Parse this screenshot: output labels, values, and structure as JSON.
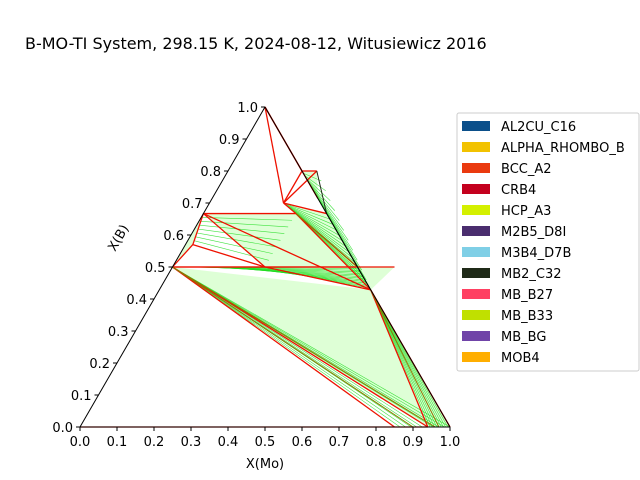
{
  "chart_data": {
    "type": "ternary-phase-diagram",
    "title": "B-MO-TI System, 298.15 K, 2024-08-12, Witusiewicz 2016",
    "xlabel": "X(Mo)",
    "ylabel": "X(B)",
    "x_ticks": [
      "0.0",
      "0.1",
      "0.2",
      "0.3",
      "0.4",
      "0.5",
      "0.6",
      "0.7",
      "0.8",
      "0.9",
      "1.0"
    ],
    "y_ticks": [
      "0.0",
      "0.1",
      "0.2",
      "0.3",
      "0.4",
      "0.5",
      "0.6",
      "0.7",
      "0.8",
      "0.9",
      "1.0"
    ],
    "xlim": [
      0,
      1
    ],
    "ylim": [
      0,
      1
    ],
    "grid": false,
    "legend_position": "right",
    "legend": [
      {
        "name": "AL2CU_C16",
        "color": "#0b4f8a"
      },
      {
        "name": "ALPHA_RHOMBO_B",
        "color": "#f2c200"
      },
      {
        "name": "BCC_A2",
        "color": "#ea3a0f"
      },
      {
        "name": "CRB4",
        "color": "#c4001e"
      },
      {
        "name": "HCP_A3",
        "color": "#d4f000"
      },
      {
        "name": "M2B5_D8I",
        "color": "#4a2d6e"
      },
      {
        "name": "M3B4_D7B",
        "color": "#7fcfe6"
      },
      {
        "name": "MB2_C32",
        "color": "#1f2a18"
      },
      {
        "name": "MB_B27",
        "color": "#ff4062"
      },
      {
        "name": "MB_B33",
        "color": "#c0e000"
      },
      {
        "name": "MB_BG",
        "color": "#7044a8"
      },
      {
        "name": "MOB4",
        "color": "#ffae00"
      }
    ],
    "phase_points": {
      "B": [
        0.0,
        1.0
      ],
      "MB2_Ti": [
        0.0,
        0.667
      ],
      "MB_Ti": [
        0.0,
        0.5
      ],
      "MB_Mo": [
        0.5,
        0.5
      ],
      "M3B4_Mo": [
        0.5714,
        0.4286
      ],
      "MB2_Mo": [
        0.333,
        0.667
      ],
      "M2B5_Mo": [
        0.2857,
        0.7143
      ],
      "MOB4": [
        0.2,
        0.8
      ],
      "MB2_mid": [
        0.25,
        0.667
      ],
      "Mo": [
        1.0,
        0.0
      ],
      "Ti": [
        0.0,
        0.0
      ]
    },
    "boundary_segments": [
      [
        [
          0.0,
          1.0
        ],
        [
          0.2857,
          0.7143
        ]
      ],
      [
        [
          0.0,
          1.0
        ],
        [
          0.2,
          0.8
        ]
      ],
      [
        [
          0.0,
          1.0
        ],
        [
          0.2,
          0.7
        ]
      ],
      [
        [
          0.2,
          0.8
        ],
        [
          0.24,
          0.8
        ]
      ],
      [
        [
          0.24,
          0.8
        ],
        [
          0.2,
          0.7
        ]
      ],
      [
        [
          0.2,
          0.8
        ],
        [
          0.2,
          0.7
        ]
      ],
      [
        [
          0.2,
          0.7
        ],
        [
          0.333,
          0.667
        ]
      ],
      [
        [
          0.2,
          0.7
        ],
        [
          0.25,
          0.667
        ]
      ],
      [
        [
          0.0,
          0.667
        ],
        [
          0.25,
          0.667
        ]
      ],
      [
        [
          0.0,
          0.667
        ],
        [
          0.02,
          0.57
        ]
      ],
      [
        [
          0.02,
          0.57
        ],
        [
          0.0,
          0.5
        ]
      ],
      [
        [
          0.02,
          0.57
        ],
        [
          0.25,
          0.5
        ]
      ],
      [
        [
          0.0,
          0.667
        ],
        [
          0.25,
          0.5
        ]
      ],
      [
        [
          0.0,
          0.667
        ],
        [
          0.5714,
          0.4286
        ]
      ],
      [
        [
          0.25,
          0.667
        ],
        [
          0.5714,
          0.4286
        ]
      ],
      [
        [
          0.25,
          0.667
        ],
        [
          0.5,
          0.5
        ]
      ],
      [
        [
          0.0,
          0.5
        ],
        [
          0.5,
          0.5
        ]
      ],
      [
        [
          0.0,
          0.5
        ],
        [
          0.6,
          0.5
        ]
      ],
      [
        [
          0.25,
          0.5
        ],
        [
          0.5714,
          0.4286
        ]
      ],
      [
        [
          0.0,
          0.5
        ],
        [
          0.85,
          0.0
        ]
      ],
      [
        [
          0.0,
          0.5
        ],
        [
          0.94,
          0.0
        ]
      ],
      [
        [
          0.5714,
          0.4286
        ],
        [
          0.94,
          0.0
        ]
      ],
      [
        [
          0.5714,
          0.4286
        ],
        [
          1.0,
          0.0
        ]
      ],
      [
        [
          0.0,
          0.0
        ],
        [
          0.94,
          0.0
        ]
      ]
    ]
  }
}
